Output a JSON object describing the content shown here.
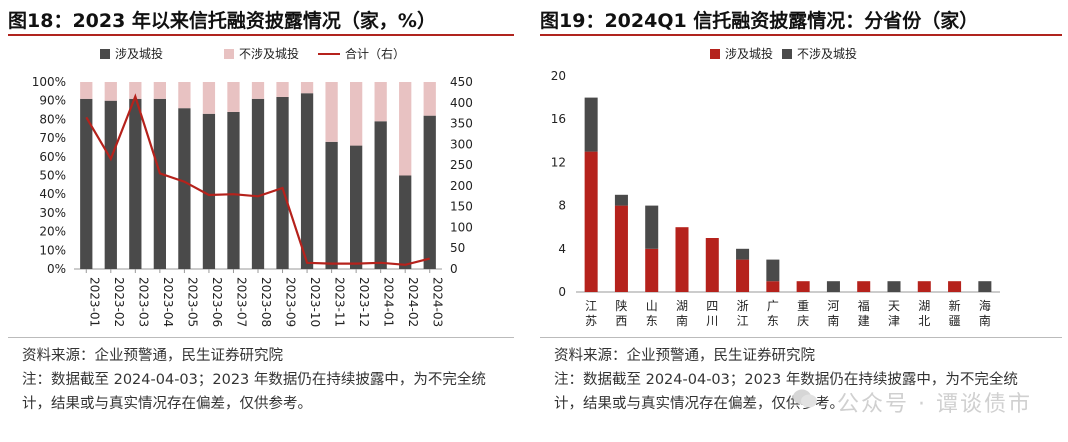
{
  "left": {
    "title": "图18：2023 年以来信托融资披露情况（家，%）",
    "notes": [
      "资料来源：企业预警通，民生证券研究院",
      "注：数据截至 2024-04-03；2023 年数据仍在持续披露中，为不完全统",
      "计，结果或与真实情况存在偏差，仅供参考。"
    ]
  },
  "right": {
    "title": "图19：2024Q1 信托融资披露情况：分省份（家）",
    "notes": [
      "资料来源：企业预警通，民生证券研究院",
      "注：数据截至 2024-04-03；2023 年数据仍在持续披露中，为不完全统",
      "计，结果或与真实情况存在偏差，仅供参考。"
    ]
  },
  "watermark": "公众号 · 谭谈债市",
  "colors": {
    "dark": "#4a4a4a",
    "pink": "#e8c2c2",
    "red": "#b5221c",
    "rule": "#b0241e"
  },
  "chart_data": [
    {
      "type": "bar",
      "stacked": true,
      "title": "图18：2023 年以来信托融资披露情况（家，%）",
      "categories": [
        "2023-01",
        "2023-02",
        "2023-03",
        "2023-04",
        "2023-05",
        "2023-06",
        "2023-07",
        "2023-08",
        "2023-09",
        "2023-10",
        "2023-11",
        "2023-12",
        "2024-01",
        "2024-02",
        "2024-03"
      ],
      "series": [
        {
          "name": "涉及城投",
          "axis": "left",
          "values": [
            91,
            90,
            91,
            91,
            86,
            83,
            84,
            91,
            92,
            94,
            68,
            66,
            79,
            50,
            82
          ]
        },
        {
          "name": "不涉及城投",
          "axis": "left",
          "values": [
            9,
            10,
            9,
            9,
            14,
            17,
            16,
            9,
            8,
            6,
            32,
            34,
            21,
            50,
            18
          ]
        },
        {
          "name": "合计（右）",
          "type": "line",
          "axis": "right",
          "values": [
            365,
            265,
            415,
            230,
            210,
            178,
            180,
            175,
            195,
            15,
            13,
            13,
            15,
            10,
            25
          ]
        }
      ],
      "yleft": {
        "ticks": [
          "0%",
          "10%",
          "20%",
          "30%",
          "40%",
          "50%",
          "60%",
          "70%",
          "80%",
          "90%",
          "100%"
        ],
        "range": [
          0,
          100
        ]
      },
      "yright": {
        "ticks": [
          "0",
          "50",
          "100",
          "150",
          "200",
          "250",
          "300",
          "350",
          "400",
          "450"
        ],
        "range": [
          0,
          450
        ]
      },
      "legend_position": "top"
    },
    {
      "type": "bar",
      "stacked": true,
      "title": "图19：2024Q1 信托融资披露情况：分省份（家）",
      "categories": [
        "江苏",
        "陕西",
        "山东",
        "湖南",
        "四川",
        "浙江",
        "广东",
        "重庆",
        "河南",
        "福建",
        "天津",
        "湖北",
        "新疆",
        "海南"
      ],
      "series": [
        {
          "name": "涉及城投",
          "values": [
            13,
            8,
            4,
            6,
            5,
            3,
            1,
            1,
            0,
            1,
            0,
            1,
            1,
            0
          ]
        },
        {
          "name": "不涉及城投",
          "values": [
            5,
            1,
            4,
            0,
            0,
            1,
            2,
            0,
            1,
            0,
            1,
            0,
            0,
            1
          ]
        }
      ],
      "yleft": {
        "ticks": [
          "0",
          "4",
          "8",
          "12",
          "16",
          "20"
        ],
        "range": [
          0,
          20
        ]
      },
      "legend_position": "top-left"
    }
  ]
}
